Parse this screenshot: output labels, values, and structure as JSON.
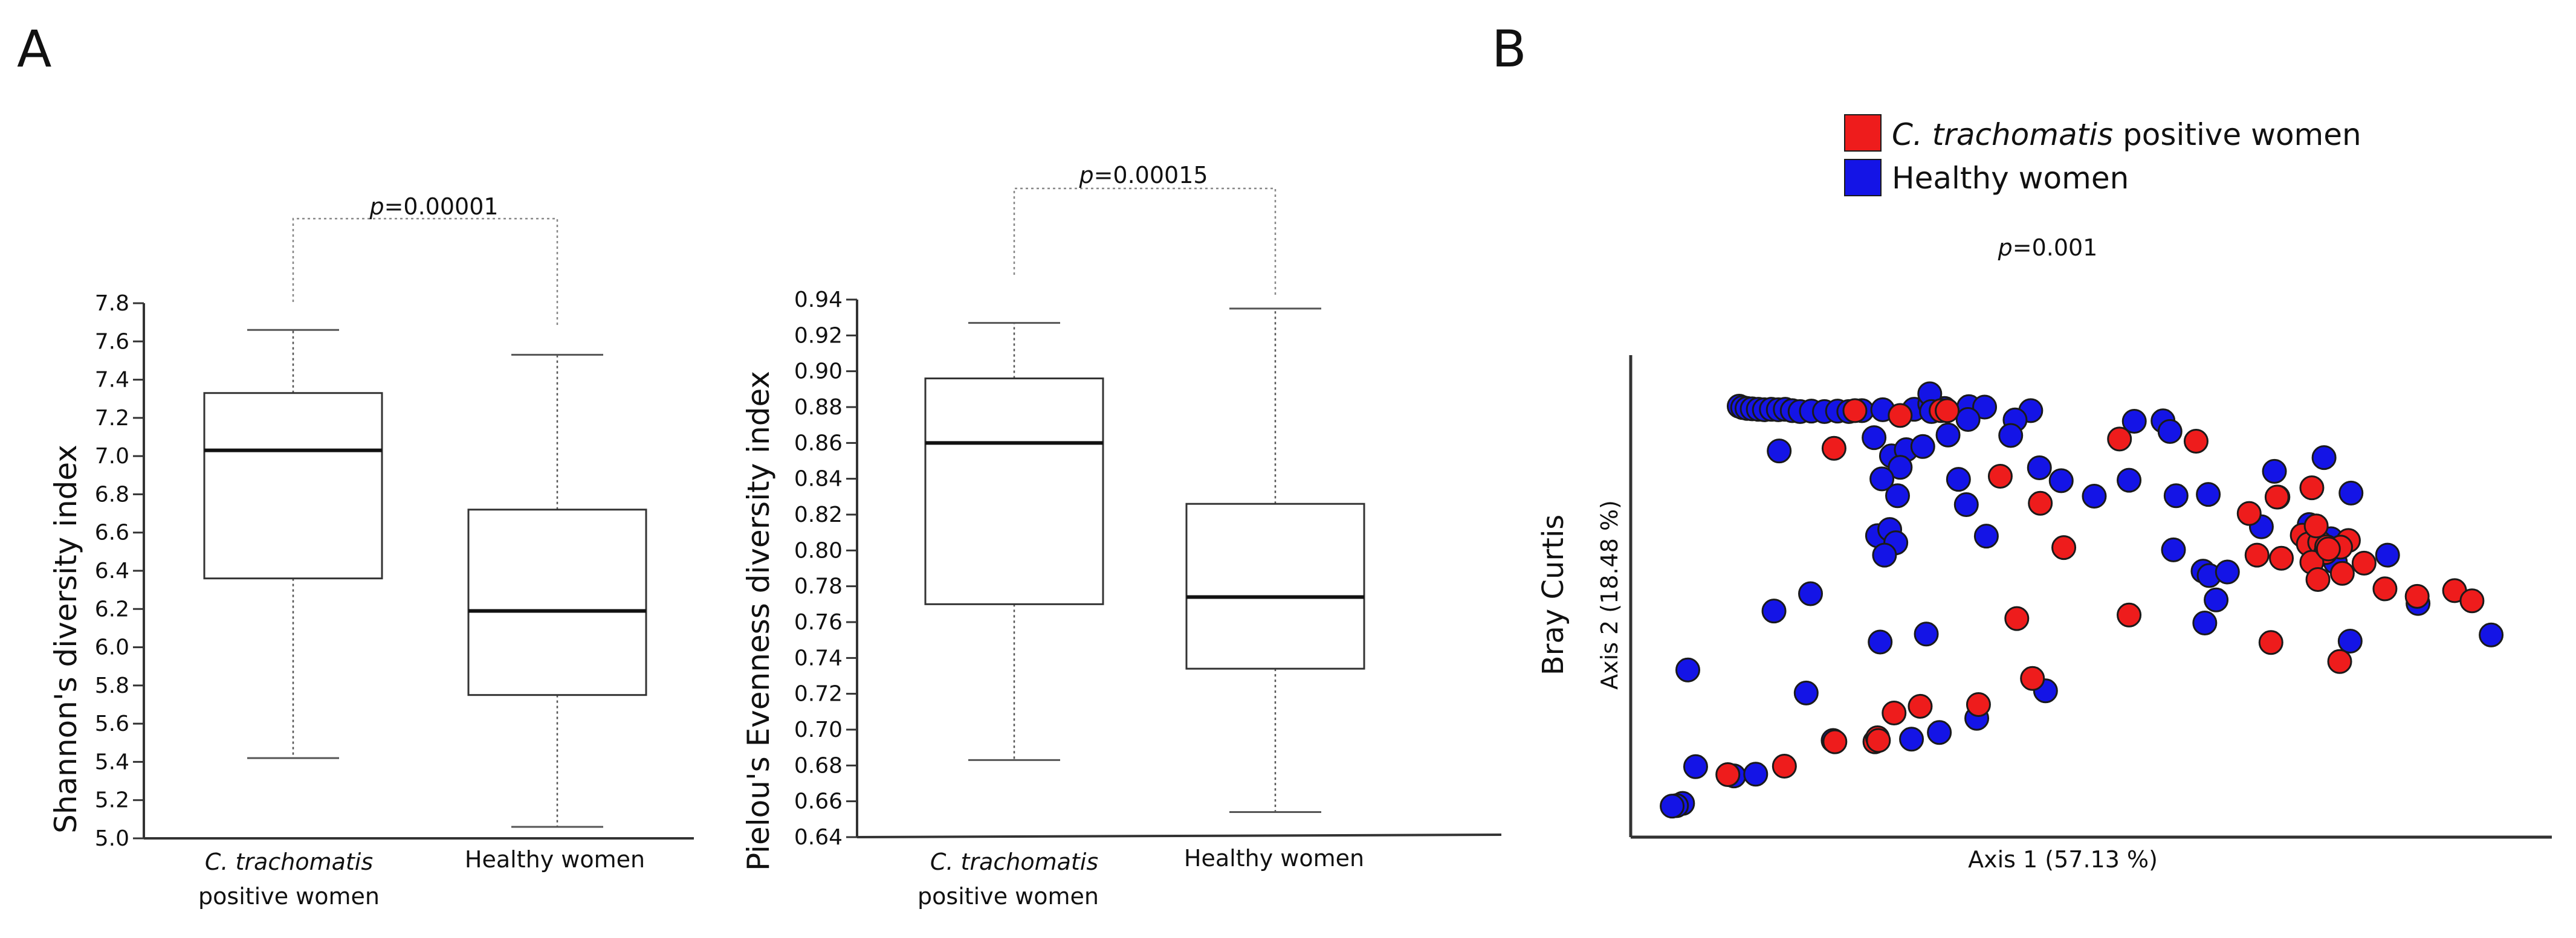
{
  "panel_labels": [
    "A",
    "B"
  ],
  "colors": {
    "positive": "#ee1c1c",
    "healthy": "#1414e6"
  },
  "chart_data": [
    {
      "type": "box",
      "ylabel": "Shannon's diversity index",
      "ylim": [
        5.0,
        7.8
      ],
      "yticks": [
        5.0,
        5.2,
        5.4,
        5.6,
        5.8,
        6.0,
        6.2,
        6.4,
        6.6,
        6.8,
        7.0,
        7.2,
        7.4,
        7.6,
        7.8
      ],
      "tick_decimals": 1,
      "categories": [
        {
          "line1": "C. trachomatis",
          "line1_italic": true,
          "line2": "positive women"
        },
        {
          "line1": "Healthy women",
          "line1_italic": false,
          "line2": ""
        }
      ],
      "boxes": [
        {
          "min": 5.42,
          "q1": 6.36,
          "median": 7.03,
          "q3": 7.33,
          "max": 7.66
        },
        {
          "min": 5.06,
          "q1": 5.75,
          "median": 6.19,
          "q3": 6.72,
          "max": 7.53
        }
      ],
      "pvalue": {
        "prefix": "p",
        "value": "=0.00001"
      }
    },
    {
      "type": "box",
      "ylabel": "Pielou's Evenness diversity index",
      "ylim": [
        0.64,
        0.94
      ],
      "yticks": [
        0.64,
        0.66,
        0.68,
        0.7,
        0.72,
        0.74,
        0.76,
        0.78,
        0.8,
        0.82,
        0.84,
        0.86,
        0.88,
        0.9,
        0.92,
        0.94
      ],
      "tick_decimals": 2,
      "categories": [
        {
          "line1": "C. trachomatis",
          "line1_italic": true,
          "line2": "positive women"
        },
        {
          "line1": "Healthy women",
          "line1_italic": false,
          "line2": ""
        }
      ],
      "boxes": [
        {
          "min": 0.683,
          "q1": 0.77,
          "median": 0.86,
          "q3": 0.896,
          "max": 0.927
        },
        {
          "min": 0.654,
          "q1": 0.734,
          "median": 0.774,
          "q3": 0.826,
          "max": 0.935
        }
      ],
      "pvalue": {
        "prefix": "p",
        "value": "=0.00015"
      }
    },
    {
      "type": "scatter",
      "title": "Bray Curtis",
      "xlabel": "Axis 1 (57.13 %)",
      "ylabel": "Axis 2 (18.48 %)",
      "xlim": [
        0,
        100
      ],
      "ylim": [
        0,
        100
      ],
      "pvalue": {
        "prefix": "p",
        "value": "=0.001"
      },
      "legend": [
        {
          "name_italic": "C. trachomatis",
          "name_rest": " positive women",
          "color_key": "positive"
        },
        {
          "name_italic": "",
          "name_rest": "Healthy women",
          "color_key": "healthy"
        }
      ],
      "series": [
        {
          "name": "C. trachomatis positive women",
          "color_key": "positive",
          "points": [
            [
              23.4,
              91.3
            ],
            [
              28.6,
              90.2
            ],
            [
              21.0,
              82.8
            ],
            [
              33.3,
              91.3
            ],
            [
              34.0,
              91.3
            ],
            [
              40.1,
              76.5
            ],
            [
              53.8,
              84.9
            ],
            [
              44.7,
              70.4
            ],
            [
              47.4,
              60.4
            ],
            [
              42.0,
              44.4
            ],
            [
              37.6,
              25.0
            ],
            [
              43.8,
              30.9
            ],
            [
              54.9,
              45.2
            ],
            [
              27.9,
              23.1
            ],
            [
              25.7,
              16.6
            ],
            [
              21.1,
              16.6
            ],
            [
              26.0,
              17.5
            ],
            [
              30.9,
              24.6
            ],
            [
              15.3,
              11.1
            ],
            [
              8.8,
              9.2
            ],
            [
              26.1,
              16.9
            ],
            [
              62.6,
              84.4
            ],
            [
              68.7,
              68.1
            ],
            [
              69.6,
              58.7
            ],
            [
              72.4,
              58.0
            ],
            [
              74.8,
              63.2
            ],
            [
              75.5,
              61.2
            ],
            [
              76.8,
              61.6
            ],
            [
              77.5,
              59.3
            ],
            [
              75.9,
              57.1
            ],
            [
              76.6,
              53.2
            ],
            [
              79.4,
              54.6
            ],
            [
              80.1,
              62.0
            ],
            [
              77.6,
              60.6
            ],
            [
              76.4,
              65.3
            ],
            [
              75.9,
              73.9
            ],
            [
              79.2,
              60.5
            ],
            [
              81.9,
              56.9
            ],
            [
              84.3,
              51.1
            ],
            [
              88.0,
              49.4
            ],
            [
              92.3,
              50.7
            ],
            [
              94.3,
              48.4
            ],
            [
              71.2,
              39.0
            ],
            [
              79.1,
              34.7
            ],
            [
              77.8,
              60.1
            ],
            [
              71.9,
              71.8
            ]
          ]
        },
        {
          "name": "Healthy women",
          "color_key": "healthy",
          "points": [
            [
              10.1,
              92.3
            ],
            [
              10.5,
              92.0
            ],
            [
              11.0,
              91.8
            ],
            [
              11.6,
              91.7
            ],
            [
              12.3,
              91.6
            ],
            [
              13.0,
              91.5
            ],
            [
              13.8,
              91.6
            ],
            [
              14.6,
              91.5
            ],
            [
              15.4,
              91.6
            ],
            [
              16.2,
              91.3
            ],
            [
              17.1,
              91.1
            ],
            [
              18.4,
              91.2
            ],
            [
              19.9,
              91.1
            ],
            [
              21.4,
              91.2
            ],
            [
              22.7,
              91.1
            ],
            [
              24.2,
              91.3
            ],
            [
              26.6,
              91.5
            ],
            [
              30.2,
              91.6
            ],
            [
              32.0,
              92.8
            ],
            [
              32.4,
              91.9
            ],
            [
              33.7,
              91.8
            ],
            [
              36.5,
              92.2
            ],
            [
              38.3,
              92.1
            ],
            [
              43.6,
              91.3
            ],
            [
              32.0,
              95.1
            ],
            [
              32.2,
              91.1
            ],
            [
              36.4,
              89.3
            ],
            [
              41.8,
              89.2
            ],
            [
              34.1,
              85.8
            ],
            [
              25.6,
              85.2
            ],
            [
              41.3,
              85.7
            ],
            [
              14.7,
              82.2
            ],
            [
              27.6,
              81.1
            ],
            [
              29.3,
              82.5
            ],
            [
              31.2,
              83.2
            ],
            [
              28.6,
              78.5
            ],
            [
              26.5,
              75.9
            ],
            [
              35.3,
              75.8
            ],
            [
              28.3,
              72.1
            ],
            [
              36.2,
              70.1
            ],
            [
              44.6,
              78.4
            ],
            [
              47.1,
              75.5
            ],
            [
              50.9,
              72.0
            ],
            [
              54.9,
              75.6
            ],
            [
              55.5,
              88.9
            ],
            [
              58.8,
              89.0
            ],
            [
              59.6,
              86.6
            ],
            [
              26.0,
              63.1
            ],
            [
              27.4,
              64.5
            ],
            [
              28.1,
              61.5
            ],
            [
              26.8,
              58.7
            ],
            [
              38.5,
              63.0
            ],
            [
              18.3,
              50.0
            ],
            [
              14.1,
              46.1
            ],
            [
              26.3,
              39.1
            ],
            [
              31.6,
              40.9
            ],
            [
              4.2,
              32.8
            ],
            [
              17.8,
              27.6
            ],
            [
              20.9,
              16.9
            ],
            [
              29.9,
              17.2
            ],
            [
              33.1,
              18.7
            ],
            [
              37.4,
              21.9
            ],
            [
              45.3,
              28.1
            ],
            [
              5.1,
              11.0
            ],
            [
              9.5,
              8.9
            ],
            [
              12.0,
              9.3
            ],
            [
              3.6,
              2.7
            ],
            [
              2.9,
              2.2
            ],
            [
              2.4,
              2.1
            ],
            [
              60.3,
              72.1
            ],
            [
              64.0,
              72.4
            ],
            [
              60.0,
              59.9
            ],
            [
              63.4,
              55.1
            ],
            [
              64.1,
              54.1
            ],
            [
              66.2,
              54.9
            ],
            [
              64.9,
              48.6
            ],
            [
              63.6,
              43.4
            ],
            [
              72.0,
              71.8
            ],
            [
              71.6,
              77.6
            ],
            [
              77.3,
              80.7
            ],
            [
              70.1,
              65.1
            ],
            [
              75.6,
              65.6
            ],
            [
              78.1,
              62.4
            ],
            [
              80.4,
              72.7
            ],
            [
              84.6,
              58.7
            ],
            [
              78.6,
              57.1
            ],
            [
              80.3,
              39.3
            ],
            [
              88.1,
              47.8
            ],
            [
              96.5,
              40.7
            ]
          ]
        }
      ]
    }
  ]
}
